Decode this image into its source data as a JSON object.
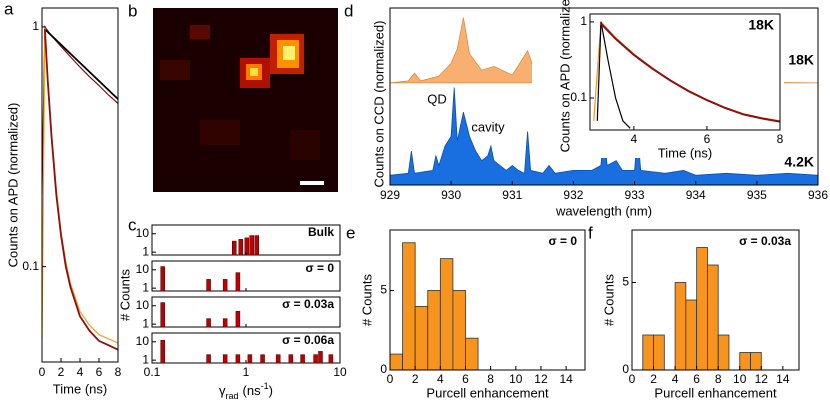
{
  "chart_data": [
    {
      "type": "line",
      "panel": "a",
      "y_label": "Counts on APD (normalized)",
      "x_label": "Time (ns)",
      "log_y": true,
      "xlim": [
        0,
        8
      ],
      "ylim": [
        0.04,
        1.2
      ],
      "xticks": [
        0,
        2,
        4,
        6,
        8
      ],
      "yticks": [
        1,
        0.1
      ],
      "series": [
        {
          "color": "#8b0a0a",
          "x": [
            0,
            0.3,
            1,
            2,
            3,
            4,
            5,
            6,
            7,
            8
          ],
          "values": [
            0.2,
            1.0,
            0.92,
            0.83,
            0.75,
            0.68,
            0.62,
            0.57,
            0.52,
            0.48
          ]
        },
        {
          "color": "#000000",
          "x": [
            0.4,
            8
          ],
          "values": [
            0.97,
            0.5
          ]
        },
        {
          "color": "#f7a020",
          "x": [
            0,
            0.3,
            0.6,
            1,
            1.5,
            2,
            2.5,
            3,
            4,
            5,
            6,
            7,
            8
          ],
          "values": [
            0.05,
            1.0,
            0.62,
            0.36,
            0.21,
            0.14,
            0.105,
            0.085,
            0.065,
            0.057,
            0.052,
            0.05,
            0.048
          ]
        },
        {
          "color": "#8b1010",
          "x": [
            0.3,
            0.6,
            1,
            1.5,
            2,
            2.5,
            3,
            4,
            5,
            6,
            7,
            8
          ],
          "values": [
            0.98,
            0.6,
            0.35,
            0.2,
            0.135,
            0.1,
            0.082,
            0.062,
            0.054,
            0.049,
            0.047,
            0.045
          ]
        }
      ]
    },
    {
      "type": "image",
      "panel": "b"
    },
    {
      "type": "bar",
      "panel": "c",
      "log_x": true,
      "log_y": true,
      "xlim": [
        0.1,
        10
      ],
      "ylim": [
        0.7,
        30
      ],
      "xticks": [
        0.1,
        1,
        10
      ],
      "yticks": [
        1,
        10
      ],
      "y_label": "# Counts",
      "x_label": [
        "γ",
        "rad",
        "(ns",
        "-1",
        ")"
      ],
      "color": "#c00000",
      "subplots": [
        {
          "label": "Bulk",
          "x": [
            0.75,
            0.88,
            1.02,
            1.15,
            1.3
          ],
          "values": [
            4,
            5,
            6,
            8,
            8
          ]
        },
        {
          "label": "σ = 0",
          "x": [
            0.13,
            0.4,
            0.6,
            0.82
          ],
          "values": [
            15,
            3,
            3,
            7
          ]
        },
        {
          "label": "σ = 0.03a",
          "x": [
            0.13,
            0.4,
            0.6,
            0.82
          ],
          "values": [
            15,
            2,
            2,
            5
          ]
        },
        {
          "label": "σ = 0.06a",
          "x": [
            0.13,
            0.4,
            0.6,
            0.82,
            1.1,
            1.5,
            2.2,
            3,
            4,
            5.5,
            6.2,
            8
          ],
          "values": [
            12,
            2,
            2,
            2,
            2,
            2,
            2,
            2,
            2,
            2,
            3,
            2
          ]
        }
      ]
    },
    {
      "type": "area",
      "panel": "d",
      "x_label": "wavelength (nm)",
      "y_label": "Counts on CCD (normalized)",
      "xlim": [
        929,
        936
      ],
      "xticks": [
        929,
        930,
        931,
        932,
        933,
        934,
        935,
        936
      ],
      "ylim": [
        0,
        1.82
      ],
      "annotations": [
        "QD",
        "cavity"
      ],
      "series": [
        {
          "name": "18K",
          "color": "#f8b070",
          "x": [
            929,
            929.3,
            929.4,
            929.5,
            929.8,
            930.0,
            930.1,
            930.2,
            930.3,
            930.5,
            930.7,
            931.0,
            931.25,
            931.4,
            932.0,
            932.5,
            933.0,
            936
          ],
          "values": [
            1.05,
            1.07,
            1.15,
            1.07,
            1.12,
            1.25,
            1.4,
            1.72,
            1.35,
            1.18,
            1.22,
            1.13,
            1.38,
            1.11,
            1.07,
            1.12,
            1.07,
            1.05
          ]
        },
        {
          "name": "4.2K",
          "color": "#1a6fe0",
          "x": [
            929,
            929.3,
            929.35,
            929.4,
            929.7,
            929.75,
            929.8,
            929.9,
            930.0,
            930.05,
            930.1,
            930.15,
            930.2,
            930.3,
            930.4,
            930.5,
            930.6,
            930.65,
            930.7,
            930.9,
            931.0,
            931.1,
            931.2,
            931.25,
            931.3,
            931.5,
            931.6,
            931.7,
            932.0,
            932.3,
            932.45,
            932.5,
            932.55,
            932.7,
            932.8,
            933.0,
            933.05,
            933.1,
            933.5,
            933.8,
            934.0,
            934.5,
            935.0,
            935.5,
            936
          ],
          "values": [
            0.1,
            0.12,
            0.35,
            0.12,
            0.15,
            0.3,
            0.2,
            0.4,
            0.5,
            1.0,
            0.45,
            0.6,
            0.75,
            0.5,
            0.35,
            0.25,
            0.3,
            0.4,
            0.25,
            0.15,
            0.2,
            0.15,
            0.12,
            0.55,
            0.15,
            0.12,
            0.2,
            0.12,
            0.15,
            0.15,
            0.2,
            0.55,
            0.2,
            0.25,
            0.15,
            0.15,
            0.55,
            0.15,
            0.12,
            0.15,
            0.1,
            0.12,
            0.1,
            0.12,
            0.1
          ]
        }
      ],
      "inset": {
        "type": "line",
        "log_y": true,
        "label": "18K",
        "x_label": "Time (ns)",
        "y_label": "Counts on APD (normalized)",
        "xlim": [
          2.8,
          8
        ],
        "ylim": [
          0.038,
          1.27
        ],
        "xticks": [
          4,
          6,
          8
        ],
        "yticks": [
          1,
          0.1
        ],
        "series": [
          {
            "color": "#f7941d",
            "x": [
              2.9,
              3.1,
              3.5,
              4,
              4.5,
              5,
              5.5,
              6,
              6.5,
              7,
              7.5,
              8
            ],
            "values": [
              0.05,
              1.0,
              0.62,
              0.38,
              0.25,
              0.17,
              0.125,
              0.095,
              0.075,
              0.062,
              0.055,
              0.05
            ]
          },
          {
            "color": "#000000",
            "x": [
              3.0,
              3.1,
              3.3,
              3.5,
              3.7,
              3.9
            ],
            "values": [
              0.05,
              1.0,
              0.3,
              0.1,
              0.05,
              0.04
            ]
          },
          {
            "color": "#8b1010",
            "x": [
              3.1,
              3.5,
              4,
              4.5,
              5,
              5.5,
              6,
              6.5,
              7,
              7.5,
              8
            ],
            "values": [
              0.95,
              0.6,
              0.37,
              0.245,
              0.17,
              0.123,
              0.094,
              0.074,
              0.061,
              0.054,
              0.049
            ]
          }
        ]
      }
    },
    {
      "type": "histogram",
      "panel": "e",
      "label": "σ = 0",
      "x_label": "Purcell enhancement",
      "y_label": "# Counts",
      "color": "#f7941d",
      "bins": [
        0,
        1,
        2,
        3,
        4,
        5,
        6,
        7
      ],
      "values": [
        1,
        8,
        4,
        5,
        7,
        5,
        2
      ],
      "xlim": [
        0,
        15.5
      ],
      "xticks": [
        0,
        2,
        4,
        6,
        8,
        10,
        12,
        14
      ],
      "ylim": [
        0,
        8.8
      ],
      "yticks": [
        0,
        5
      ]
    },
    {
      "type": "histogram",
      "panel": "f",
      "label": "σ = 0.03a",
      "x_label": "Purcell enhancement",
      "y_label": "# Counts",
      "color": "#f7941d",
      "bins": [
        1,
        2,
        3,
        4,
        5,
        6,
        7,
        8,
        9,
        10,
        11,
        12
      ],
      "values": [
        2,
        2,
        0,
        5,
        4,
        7,
        6,
        2,
        0,
        1,
        1
      ],
      "xlim": [
        0,
        15.5
      ],
      "xticks": [
        0,
        2,
        4,
        6,
        8,
        10,
        12,
        14
      ],
      "ylim": [
        0,
        8
      ],
      "yticks": [
        0,
        5
      ]
    }
  ]
}
